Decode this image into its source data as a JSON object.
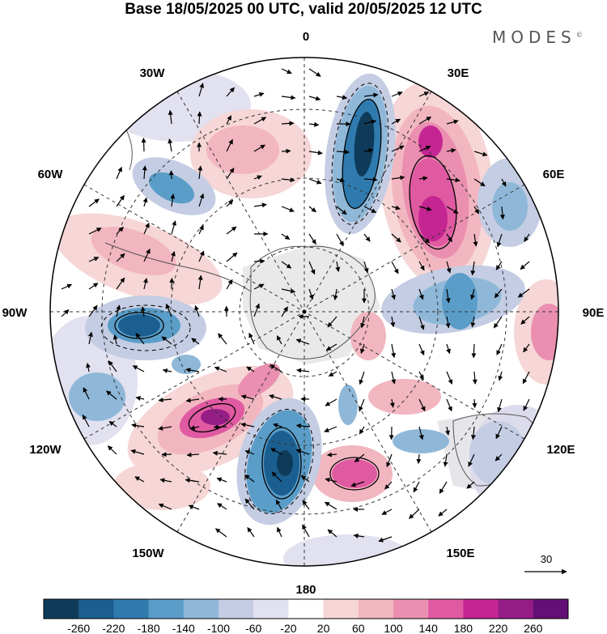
{
  "title": "Base 18/05/2025 00 UTC, valid 20/05/2025 12 UTC",
  "brand": "MODES",
  "brand_mark": "©",
  "map": {
    "projection": "south-polar-stereographic",
    "longitude_labels": [
      "0",
      "30E",
      "60E",
      "90E",
      "120E",
      "150E",
      "180",
      "150W",
      "120W",
      "90W",
      "60W",
      "30W"
    ],
    "graticule": "dashed",
    "wind_vectors": true
  },
  "reference_vector": {
    "label": "30"
  },
  "colorbar": {
    "ticks": [
      "-260",
      "-220",
      "-180",
      "-140",
      "-100",
      "-60",
      "-20",
      "20",
      "60",
      "100",
      "140",
      "180",
      "220",
      "260"
    ],
    "colors": [
      "#0f3b5a",
      "#1a5f8f",
      "#2f7bb0",
      "#5a9dc8",
      "#8fb8d8",
      "#c4cde3",
      "#e2e1ef",
      "#ffffff",
      "#f6d6d6",
      "#f2b6c1",
      "#ea8fb0",
      "#e05aa2",
      "#c42592",
      "#951d86",
      "#621075"
    ]
  }
}
